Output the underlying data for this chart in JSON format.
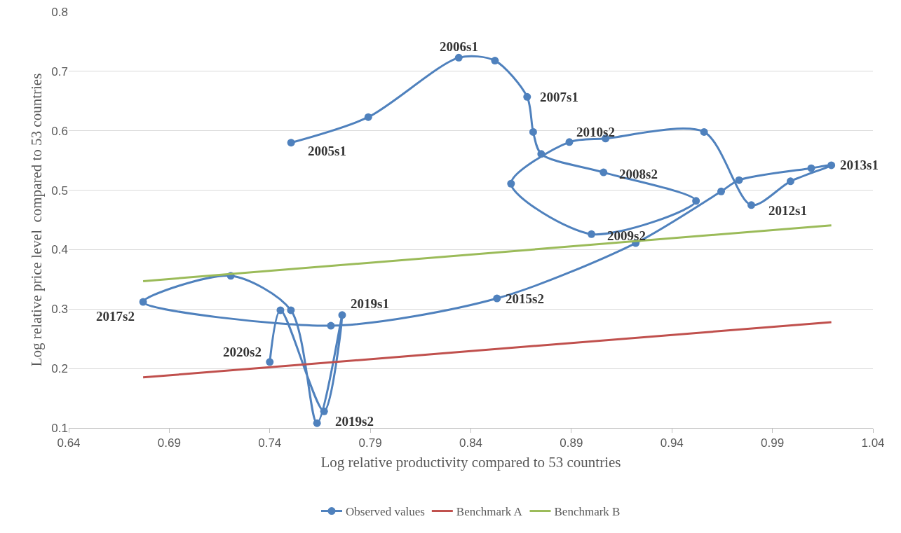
{
  "chart_data": {
    "type": "line",
    "xlabel": "Log relative productivity compared to 53 countries",
    "ylabel": "Log relative price level  compared to 53 countries",
    "series": [
      {
        "name": "Observed values",
        "color": "#4f81bd",
        "marker": "circle",
        "x": [
          0.7506,
          0.789,
          0.834,
          0.852,
          0.868,
          0.871,
          0.875,
          0.906,
          0.952,
          0.9,
          0.86,
          0.889,
          0.907,
          0.956,
          0.9795,
          0.999,
          1.0193,
          1.0093,
          0.9734,
          0.9645,
          0.922,
          0.853,
          0.7704,
          0.677,
          0.7206,
          0.7505,
          0.7635,
          0.776,
          0.767,
          0.7453,
          0.74
        ],
        "values": [
          0.58,
          0.623,
          0.723,
          0.718,
          0.657,
          0.598,
          0.561,
          0.53,
          0.482,
          0.426,
          0.511,
          0.581,
          0.587,
          0.598,
          0.475,
          0.515,
          0.542,
          0.537,
          0.517,
          0.498,
          0.411,
          0.318,
          0.272,
          0.312,
          0.356,
          0.298,
          0.108,
          0.29,
          0.128,
          0.298,
          0.211
        ]
      },
      {
        "name": "Benchmark A",
        "color": "#c0504d",
        "marker": "none",
        "x": [
          0.677,
          1.0193
        ],
        "values": [
          0.185,
          0.278
        ]
      },
      {
        "name": "Benchmark B",
        "color": "#9bbb59",
        "marker": "none",
        "x": [
          0.677,
          1.0193
        ],
        "values": [
          0.347,
          0.441
        ]
      }
    ],
    "annotations": [
      {
        "text": "2005s1",
        "x": 0.7506,
        "y": 0.58
      },
      {
        "text": "2006s1",
        "x": 0.834,
        "y": 0.723
      },
      {
        "text": "2007s1",
        "x": 0.868,
        "y": 0.657
      },
      {
        "text": "2010s2",
        "x": 0.889,
        "y": 0.581
      },
      {
        "text": "2008s2",
        "x": 0.906,
        "y": 0.53
      },
      {
        "text": "2009s2",
        "x": 0.9,
        "y": 0.426
      },
      {
        "text": "2012s1",
        "x": 0.9795,
        "y": 0.475
      },
      {
        "text": "2013s1",
        "x": 1.0193,
        "y": 0.542
      },
      {
        "text": "2015s2",
        "x": 0.853,
        "y": 0.318
      },
      {
        "text": "2017s2",
        "x": 0.677,
        "y": 0.312
      },
      {
        "text": "2019s1",
        "x": 0.776,
        "y": 0.29
      },
      {
        "text": "2019s2",
        "x": 0.767,
        "y": 0.128
      },
      {
        "text": "2020s2",
        "x": 0.74,
        "y": 0.211
      }
    ],
    "xlim": [
      0.64,
      1.04
    ],
    "xticks": [
      0.64,
      0.69,
      0.74,
      0.79,
      0.84,
      0.89,
      0.94,
      0.99,
      1.04
    ],
    "ylim": [
      0.1,
      0.8
    ],
    "yticks": [
      0.1,
      0.2,
      0.3,
      0.4,
      0.5,
      0.6,
      0.7,
      0.8
    ],
    "grid": "y",
    "legend": "bottom",
    "line_style": "solid"
  }
}
